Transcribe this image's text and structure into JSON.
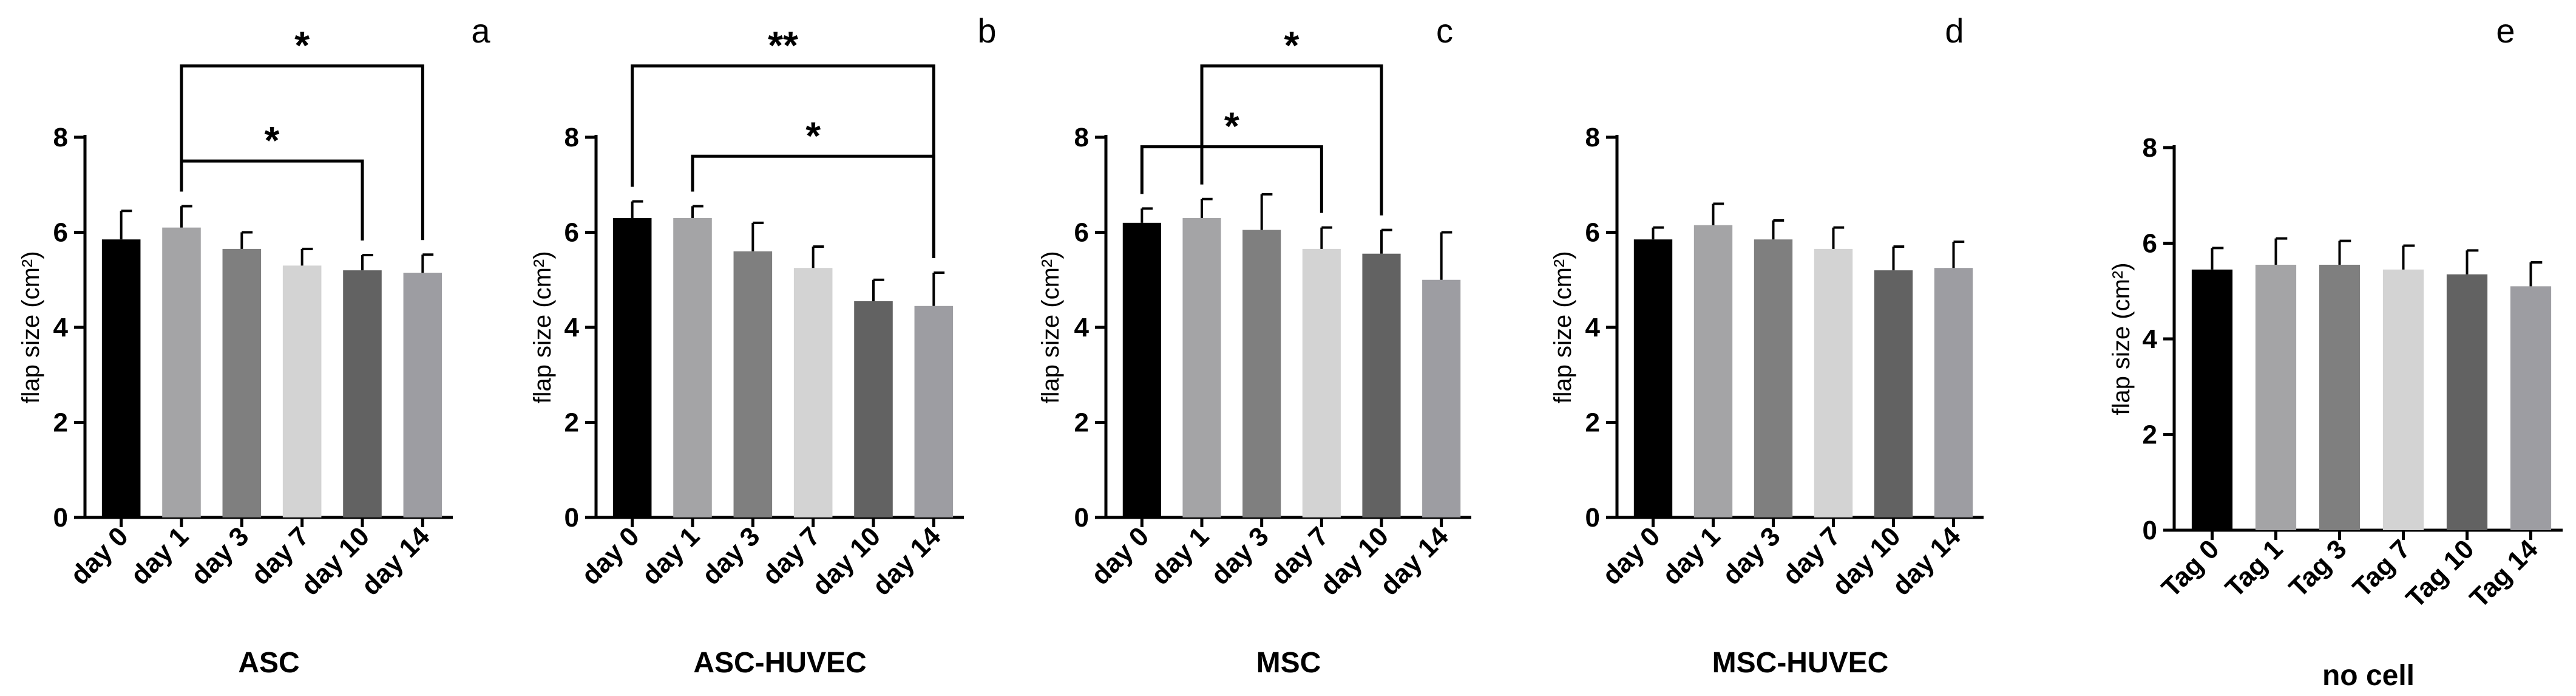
{
  "chart_data": [
    {
      "type": "bar",
      "panel_letter": "a",
      "xlabel": "ASC",
      "ylabel": "flap size (cm²)",
      "ylim": [
        0,
        8
      ],
      "yticks": [
        0,
        2,
        4,
        6,
        8
      ],
      "categories": [
        "day 0",
        "day 1",
        "day 3",
        "day 7",
        "day 10",
        "day 14"
      ],
      "values": [
        5.85,
        6.1,
        5.65,
        5.3,
        5.2,
        5.15
      ],
      "errors": [
        0.6,
        0.45,
        0.35,
        0.35,
        0.32,
        0.38
      ],
      "colors": [
        "#000000",
        "#a4a4a6",
        "#7f7f7f",
        "#d3d3d3",
        "#626262",
        "#9d9da2"
      ],
      "significance": [
        {
          "from": 1,
          "to": 5,
          "level": 9.5,
          "label": "*"
        },
        {
          "from": 1,
          "to": 4,
          "level": 7.5,
          "label": "*"
        }
      ]
    },
    {
      "type": "bar",
      "panel_letter": "b",
      "xlabel": "ASC-HUVEC",
      "ylabel": "flap size (cm²)",
      "ylim": [
        0,
        8
      ],
      "yticks": [
        0,
        2,
        4,
        6,
        8
      ],
      "categories": [
        "day 0",
        "day 1",
        "day 3",
        "day 7",
        "day 10",
        "day 14"
      ],
      "values": [
        6.3,
        6.3,
        5.6,
        5.25,
        4.55,
        4.45
      ],
      "errors": [
        0.35,
        0.25,
        0.6,
        0.45,
        0.45,
        0.7
      ],
      "colors": [
        "#000000",
        "#a4a4a6",
        "#7f7f7f",
        "#d3d3d3",
        "#626262",
        "#9d9da2"
      ],
      "significance": [
        {
          "from": 0,
          "to": 5,
          "level": 9.5,
          "label": "**"
        },
        {
          "from": 1,
          "to": 5,
          "level": 7.6,
          "label": "*"
        }
      ]
    },
    {
      "type": "bar",
      "panel_letter": "c",
      "xlabel": "MSC",
      "ylabel": "flap size (cm²)",
      "ylim": [
        0,
        8
      ],
      "yticks": [
        0,
        2,
        4,
        6,
        8
      ],
      "categories": [
        "day 0",
        "day 1",
        "day 3",
        "day 7",
        "day 10",
        "day 14"
      ],
      "values": [
        6.2,
        6.3,
        6.05,
        5.65,
        5.55,
        5.0
      ],
      "errors": [
        0.3,
        0.4,
        0.75,
        0.45,
        0.5,
        1.0
      ],
      "colors": [
        "#000000",
        "#a4a4a6",
        "#7f7f7f",
        "#d3d3d3",
        "#626262",
        "#9d9da2"
      ],
      "significance": [
        {
          "from": 1,
          "to": 4,
          "level": 9.5,
          "label": "*"
        },
        {
          "from": 0,
          "to": 3,
          "level": 7.8,
          "label": "*"
        }
      ]
    },
    {
      "type": "bar",
      "panel_letter": "d",
      "xlabel": "MSC-HUVEC",
      "ylabel": "flap size (cm²)",
      "ylim": [
        0,
        8
      ],
      "yticks": [
        0,
        2,
        4,
        6,
        8
      ],
      "categories": [
        "day 0",
        "day 1",
        "day 3",
        "day 7",
        "day 10",
        "day 14"
      ],
      "values": [
        5.85,
        6.15,
        5.85,
        5.65,
        5.2,
        5.25
      ],
      "errors": [
        0.25,
        0.45,
        0.4,
        0.45,
        0.5,
        0.55
      ],
      "colors": [
        "#000000",
        "#a4a4a6",
        "#7f7f7f",
        "#d3d3d3",
        "#626262",
        "#9d9da2"
      ],
      "significance": []
    },
    {
      "type": "bar",
      "panel_letter": "e",
      "xlabel": "no cell",
      "ylabel": "flap size (cm²)",
      "ylim": [
        0,
        8
      ],
      "yticks": [
        0,
        2,
        4,
        6,
        8
      ],
      "categories": [
        "Tag 0",
        "Tag 1",
        "Tag 3",
        "Tag 7",
        "Tag 10",
        "Tag 14"
      ],
      "values": [
        5.45,
        5.55,
        5.55,
        5.45,
        5.35,
        5.1
      ],
      "errors": [
        0.45,
        0.55,
        0.5,
        0.5,
        0.5,
        0.5
      ],
      "colors": [
        "#000000",
        "#a4a4a6",
        "#7f7f7f",
        "#d3d3d3",
        "#626262",
        "#9d9da2"
      ],
      "significance": []
    }
  ]
}
